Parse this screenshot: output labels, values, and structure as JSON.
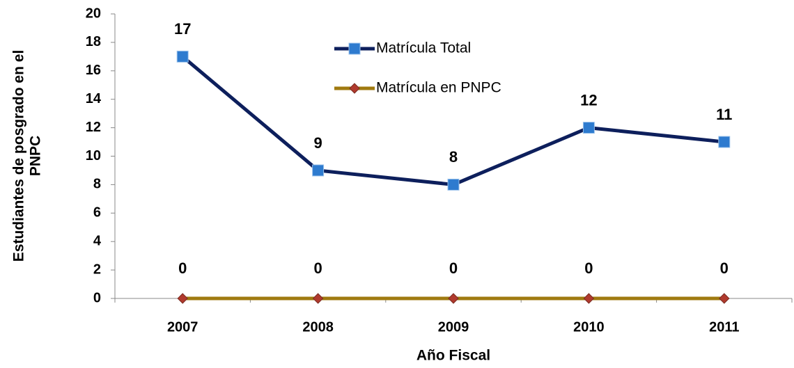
{
  "chart_data": {
    "type": "line",
    "categories": [
      "2007",
      "2008",
      "2009",
      "2010",
      "2011"
    ],
    "series": [
      {
        "name": "Matrícula Total",
        "color": "#0d1f5c",
        "marker": "square",
        "marker_color": "#2e7bcf",
        "values": [
          17,
          9,
          8,
          12,
          11
        ]
      },
      {
        "name": "Matrícula en PNPC",
        "color": "#a07a10",
        "marker": "diamond",
        "marker_color": "#b03a2e",
        "values": [
          0,
          0,
          0,
          0,
          0
        ]
      }
    ],
    "xlabel": "Año Fiscal",
    "ylabel": [
      "Estudiantes de posgrado en el",
      "PNPC"
    ],
    "ylim": [
      0,
      20
    ],
    "yticks": [
      0,
      2,
      4,
      6,
      8,
      10,
      12,
      14,
      16,
      18,
      20
    ],
    "grid": false
  }
}
